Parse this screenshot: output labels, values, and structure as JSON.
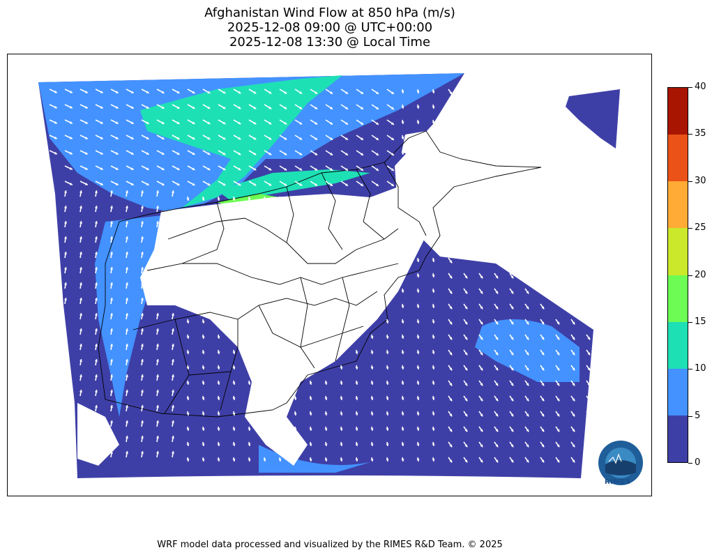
{
  "title": {
    "line1": "Afghanistan Wind Flow at 850 hPa (m/s)",
    "line2": "2025-12-08 09:00 @ UTC+00:00",
    "line3": "2025-12-08 13:30 @ Local Time"
  },
  "colorbar": {
    "levels": [
      0,
      5,
      10,
      15,
      20,
      25,
      30,
      35,
      40
    ],
    "colors": [
      "#3e3fa6",
      "#4392ff",
      "#1ee0b5",
      "#6cfc53",
      "#cbe82b",
      "#ffab35",
      "#ea5218",
      "#a81501"
    ],
    "tick_labels": [
      "0",
      "5",
      "10",
      "15",
      "20",
      "25",
      "30",
      "35",
      "40"
    ]
  },
  "colors": {
    "land_masked": "#ffffff",
    "wind_arrows": "#ffffff",
    "borders": "#000000"
  },
  "map": {
    "region": "Afghanistan",
    "level": "850 hPa",
    "variable": "Wind speed (m/s) with wind direction vectors"
  },
  "logo": {
    "text": "RIMES"
  },
  "footer": "WRF model data processed and visualized by the RIMES R&D Team. © 2025"
}
